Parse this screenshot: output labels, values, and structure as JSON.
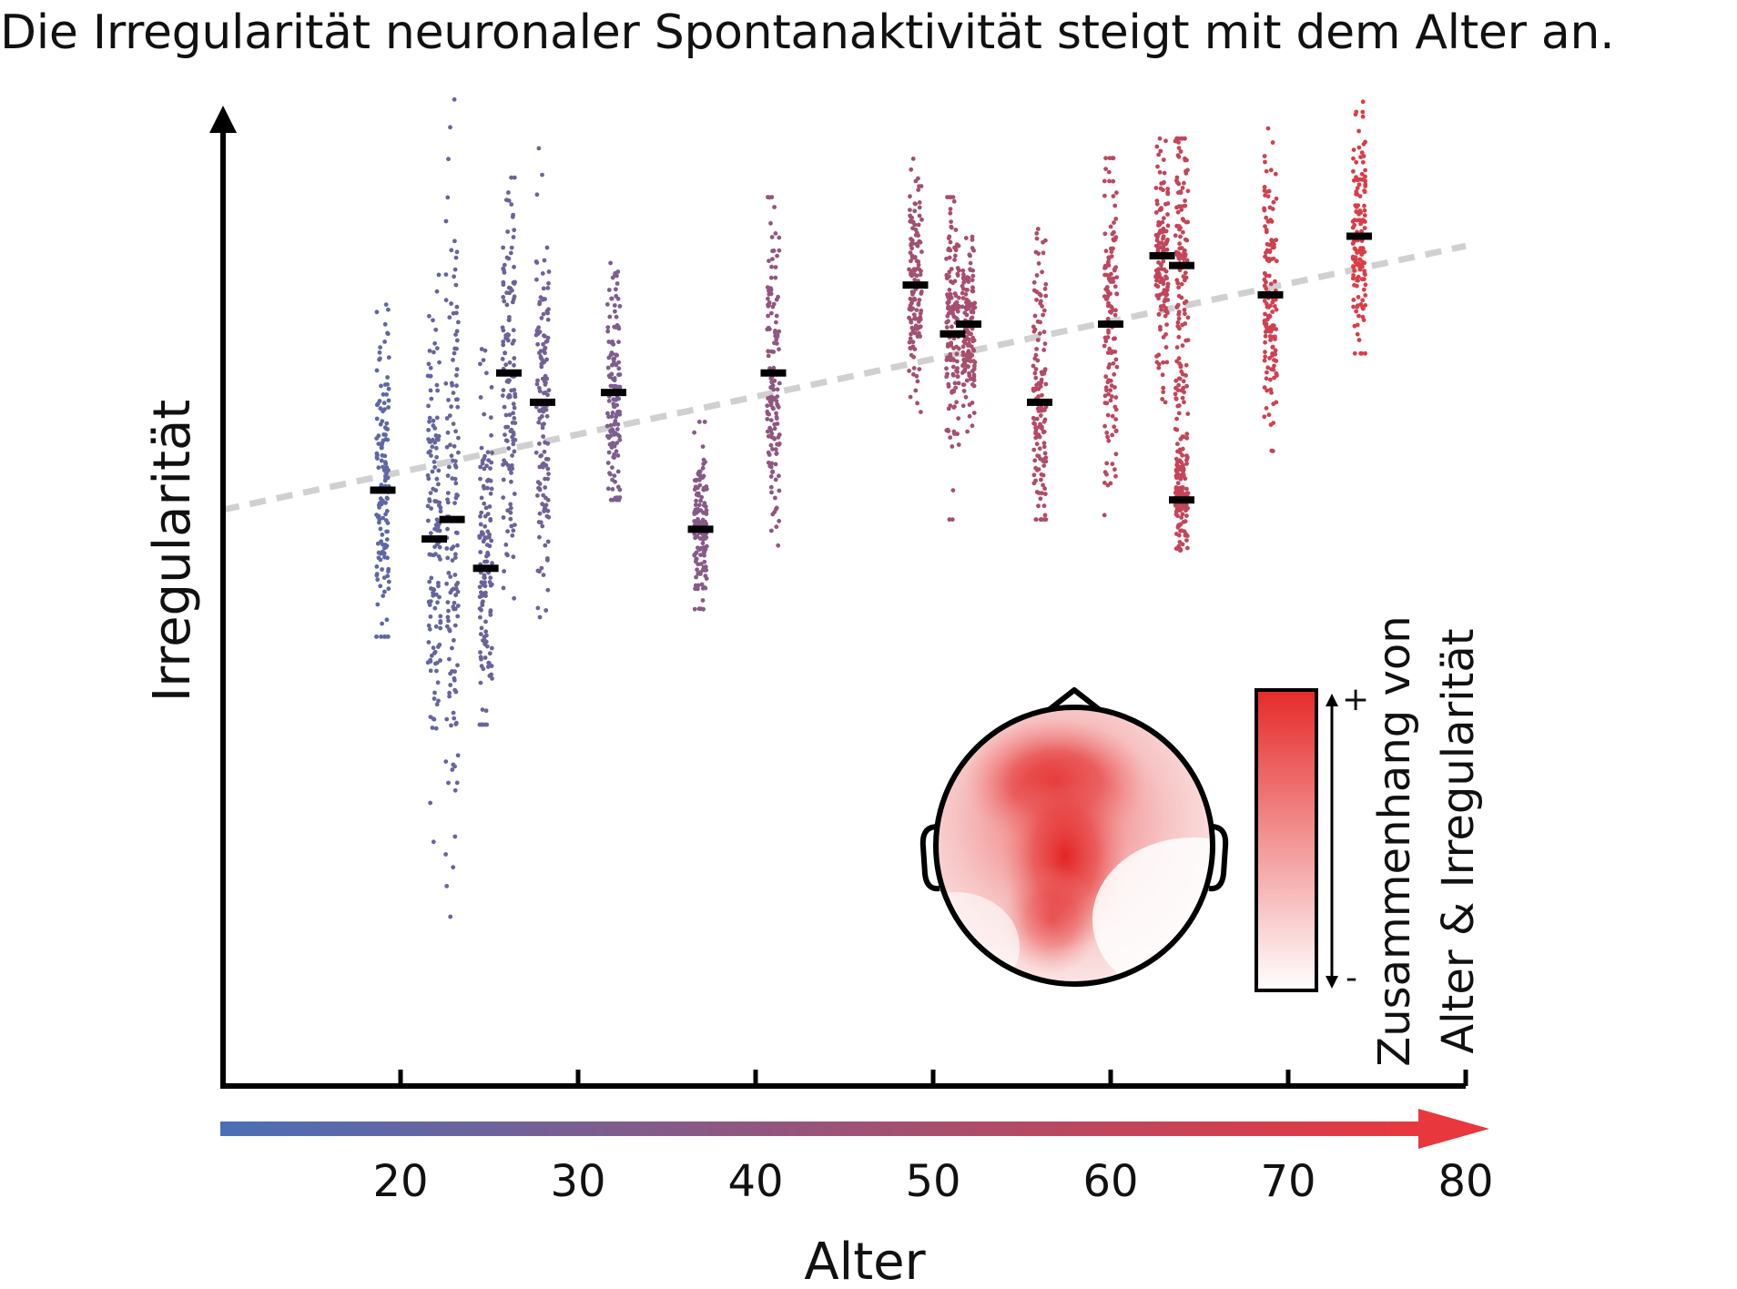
{
  "title": "Die Irregularität neuronaler Spontanaktivität steigt mit dem Alter an.",
  "chart_data": {
    "type": "scatter",
    "xlabel": "Alter",
    "ylabel": "Irregularität",
    "xlim": [
      10,
      80
    ],
    "x_ticks": [
      20,
      30,
      40,
      50,
      60,
      70,
      80
    ],
    "ylim": [
      0,
      10
    ],
    "y_ticks_shown": false,
    "color_gradient": [
      "#4a6fb5",
      "#e8383d"
    ],
    "trend_line": {
      "style": "dashed",
      "color": "#d0d0d0",
      "from": [
        10,
        5.9
      ],
      "to": [
        80,
        8.6
      ]
    },
    "participants": [
      {
        "age": 19.0,
        "median": 6.1,
        "min": 4.6,
        "max": 8.0
      },
      {
        "age": 21.9,
        "median": 5.6,
        "min": 2.5,
        "max": 8.6
      },
      {
        "age": 22.9,
        "median": 5.8,
        "min": 1.7,
        "max": 10.1
      },
      {
        "age": 24.8,
        "median": 5.3,
        "min": 3.7,
        "max": 7.6
      },
      {
        "age": 26.1,
        "median": 7.3,
        "min": 4.9,
        "max": 9.3
      },
      {
        "age": 28.0,
        "median": 7.0,
        "min": 4.8,
        "max": 9.6
      },
      {
        "age": 32.0,
        "median": 7.1,
        "min": 6.0,
        "max": 8.7
      },
      {
        "age": 36.9,
        "median": 5.7,
        "min": 4.8,
        "max": 6.8
      },
      {
        "age": 41.0,
        "median": 7.3,
        "min": 4.9,
        "max": 9.1
      },
      {
        "age": 49.0,
        "median": 8.2,
        "min": 6.9,
        "max": 9.7
      },
      {
        "age": 51.1,
        "median": 7.7,
        "min": 5.8,
        "max": 9.1
      },
      {
        "age": 52.0,
        "median": 7.8,
        "min": 6.7,
        "max": 8.9
      },
      {
        "age": 56.0,
        "median": 7.0,
        "min": 5.8,
        "max": 9.1
      },
      {
        "age": 60.0,
        "median": 7.8,
        "min": 5.6,
        "max": 9.5
      },
      {
        "age": 62.9,
        "median": 8.5,
        "min": 7.0,
        "max": 9.7
      },
      {
        "age": 64.0,
        "median": 8.4,
        "min": 6.0,
        "max": 9.7
      },
      {
        "age": 64.0,
        "median": 6.0,
        "min": 5.3,
        "max": 6.7
      },
      {
        "age": 69.0,
        "median": 8.1,
        "min": 6.5,
        "max": 9.9
      },
      {
        "age": 74.0,
        "median": 8.7,
        "min": 7.5,
        "max": 10.2
      }
    ],
    "inset": {
      "type": "scalp-topography",
      "colorbar_label_lines": [
        "Zusammenhang von",
        "Alter & Irregularität"
      ],
      "colorbar_max_label": "+",
      "colorbar_min_label": "-",
      "colorbar_colors": [
        "#ffffff",
        "#e62a2a"
      ]
    }
  }
}
